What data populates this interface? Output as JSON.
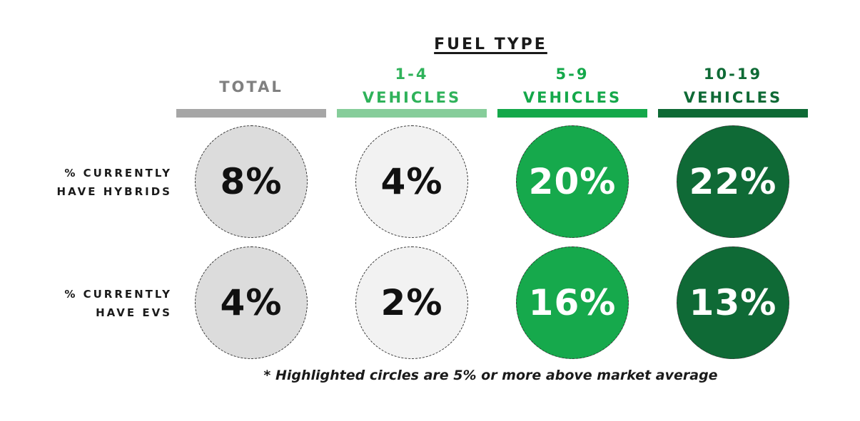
{
  "chart_data": {
    "type": "table",
    "title": "FUEL TYPE",
    "columns": [
      {
        "label_line1": "",
        "label_line2": "TOTAL",
        "color": "#a6a6a6",
        "header_color": "#808080"
      },
      {
        "label_line1": "1-4",
        "label_line2": "VEHICLES",
        "color": "#86cd9a",
        "header_color": "#2fb25a"
      },
      {
        "label_line1": "5-9",
        "label_line2": "VEHICLES",
        "color": "#14a84a",
        "header_color": "#14a84a"
      },
      {
        "label_line1": "10-19",
        "label_line2": "VEHICLES",
        "color": "#0e6a35",
        "header_color": "#0e6a35"
      }
    ],
    "rows": [
      {
        "label_line1": "% CURRENTLY",
        "label_line2": "HAVE HYBRIDS",
        "values": [
          "8%",
          "4%",
          "20%",
          "22%"
        ]
      },
      {
        "label_line1": "% CURRENTLY",
        "label_line2": "HAVE EVS",
        "values": [
          "4%",
          "2%",
          "16%",
          "13%"
        ]
      }
    ],
    "circle_styles": [
      {
        "fill": "#dcdcdc",
        "text": "#111111"
      },
      {
        "fill": "#f2f2f2",
        "text": "#111111"
      },
      {
        "fill": "#16a94c",
        "text": "#ffffff"
      },
      {
        "fill": "#0f6a36",
        "text": "#ffffff"
      }
    ],
    "footnote": "* Highlighted circles are 5% or more above market average"
  }
}
